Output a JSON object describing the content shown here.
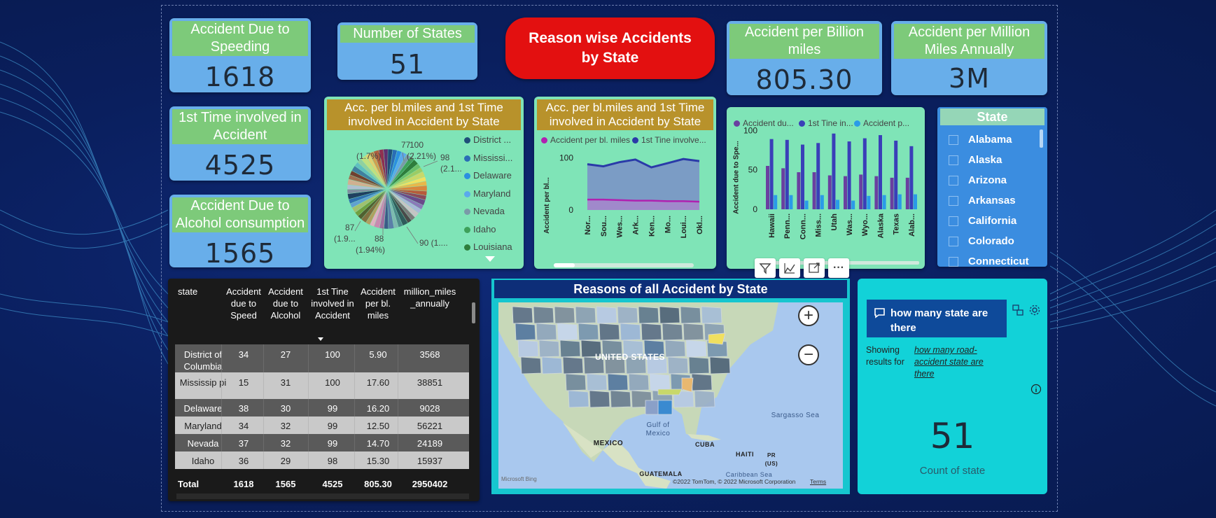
{
  "kpis": {
    "speeding": {
      "title": "Accident Due to Speeding",
      "value": "1618"
    },
    "states": {
      "title": "Number of States",
      "value": "51"
    },
    "first_time": {
      "title": "1st Time involved in Accident",
      "value": "4525"
    },
    "alcohol": {
      "title": "Accident Due to Alcohol consumption",
      "value": "1565"
    },
    "billion_miles": {
      "title": "Accident per Billion miles",
      "value": "805.30"
    },
    "million_miles": {
      "title": "Accident per Million Miles Annually",
      "value": "3M"
    }
  },
  "red_button": {
    "label": "Reason wise Accidents\nby State"
  },
  "pie_chart": {
    "title": "Acc. per bl.miles and 1st Time involved in Accident by State",
    "labels": {
      "l77": "77",
      "l77p": "(1.7%)",
      "l100": "100",
      "l100p": "(2.21%)",
      "l98": "98",
      "l98p": "(2.1...",
      "l87": "87",
      "l87p": "(1.9...",
      "l88": "88",
      "l88p": "(1.94%)",
      "l90": "90 (1...."
    },
    "legend": [
      "District ...",
      "Mississi...",
      "Delaware",
      "Maryland",
      "Nevada",
      "Idaho",
      "Louisiana"
    ],
    "legend_colors": [
      "#1f4e79",
      "#2a6db5",
      "#2b8fe0",
      "#5aa9ec",
      "#7a9aa8",
      "#3ea05a",
      "#2e7d3c"
    ]
  },
  "area_chart": {
    "title": "Acc. per bl.miles and 1st Time involved in Accident by State",
    "legend": [
      "Accident per bl. miles",
      "1st Tine involve..."
    ],
    "legend_colors": [
      "#b021b0",
      "#2a3aa8"
    ],
    "ylabel": "Accident per bl...",
    "ticks": [
      "100",
      "0"
    ],
    "categories": [
      "Nor...",
      "Sou...",
      "Wes...",
      "Ark...",
      "Ken...",
      "Mo...",
      "Loui...",
      "Okl..."
    ]
  },
  "bar_chart": {
    "legend": [
      "Accident du...",
      "1st Tine in...",
      "Accident p..."
    ],
    "legend_colors": [
      "#6a3fa0",
      "#3a3fb8",
      "#2a9be8"
    ],
    "ylabel": "Accident due to Spe...",
    "ticks": [
      "100",
      "50",
      "0"
    ],
    "categories": [
      "Hawaii",
      "Penn...",
      "Conn...",
      "Miss...",
      "Utah",
      "Was...",
      "Wyo...",
      "Alaska",
      "Texas",
      "Alab..."
    ]
  },
  "chart_data": [
    {
      "type": "line",
      "categories": [
        "Nor...",
        "Sou...",
        "Wes...",
        "Ark...",
        "Ken...",
        "Mo...",
        "Loui...",
        "Okl..."
      ],
      "series": [
        {
          "name": "Accident per bl. miles",
          "values": [
            20,
            20,
            19,
            18,
            18,
            17,
            17,
            16
          ]
        },
        {
          "name": "1st Tine involve...",
          "values": [
            88,
            84,
            92,
            97,
            82,
            90,
            98,
            94
          ]
        }
      ],
      "ylim": [
        0,
        140
      ]
    },
    {
      "type": "bar",
      "categories": [
        "Hawaii",
        "Penn...",
        "Conn...",
        "Miss...",
        "Utah",
        "Was...",
        "Wyo...",
        "Alaska",
        "Texas",
        "Alab..."
      ],
      "series": [
        {
          "name": "Accident du...",
          "values": [
            55,
            52,
            47,
            47,
            43,
            42,
            44,
            42,
            40,
            40
          ]
        },
        {
          "name": "1st Tine in...",
          "values": [
            89,
            88,
            82,
            84,
            96,
            86,
            90,
            94,
            87,
            80
          ]
        },
        {
          "name": "Accident p...",
          "values": [
            18,
            18,
            11,
            18,
            12,
            11,
            17,
            18,
            19,
            19
          ]
        }
      ],
      "ylim": [
        0,
        110
      ]
    }
  ],
  "slicer": {
    "title": "State",
    "items": [
      "Alabama",
      "Alaska",
      "Arizona",
      "Arkansas",
      "California",
      "Colorado",
      "Connecticut"
    ]
  },
  "visual_toolbar": {
    "filter": "filter-icon",
    "focus": "focus-icon",
    "expand": "expand-icon",
    "more": "···"
  },
  "table": {
    "headers": [
      "state",
      "Accident due to Speed",
      "Accident due to Alcohol",
      "1st Tine involved in Accident",
      "Accident per bl. miles",
      "million_miles _annually"
    ],
    "rows": [
      [
        "District of Columbia",
        "34",
        "27",
        "100",
        "5.90",
        "3568"
      ],
      [
        "Mississip pi",
        "15",
        "31",
        "100",
        "17.60",
        "38851"
      ],
      [
        "Delaware",
        "38",
        "30",
        "99",
        "16.20",
        "9028"
      ],
      [
        "Maryland",
        "34",
        "32",
        "99",
        "12.50",
        "56221"
      ],
      [
        "Nevada",
        "37",
        "32",
        "99",
        "14.70",
        "24189"
      ],
      [
        "Idaho",
        "36",
        "29",
        "98",
        "15.30",
        "15937"
      ]
    ],
    "total": [
      "Total",
      "1618",
      "1565",
      "4525",
      "805.30",
      "2950402"
    ]
  },
  "map": {
    "title": "Reasons of all Accident by State",
    "labels": {
      "us": "UNITED STATES",
      "mexico": "MEXICO",
      "gulf": "Gulf of\nMexico",
      "cuba": "CUBA",
      "haiti": "HAITI",
      "pr": "PR\n(US)",
      "sargasso": "Sargasso Sea",
      "guatemala": "GUATEMALA",
      "caribbean": "Caribbean Sea"
    },
    "credit": "©2022 TomTom, © 2022 Microsoft Corporation",
    "terms": "Terms",
    "brand": "Microsoft Bing"
  },
  "qa": {
    "question": "how many state are there",
    "showing": "Showing results for",
    "link": "how many road-accident state are there",
    "value": "51",
    "caption": "Count of state"
  }
}
